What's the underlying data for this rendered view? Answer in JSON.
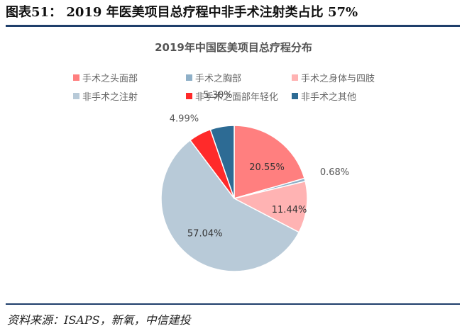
{
  "header": {
    "figure_title": "图表51： 2019 年医美项目总疗程中非手术注射类占比 57%"
  },
  "chart_data": {
    "type": "pie",
    "title": "2019年中国医美项目总疗程分布",
    "legend_position": "top",
    "slices": [
      {
        "name": "手术之头面部",
        "value": 20.55,
        "label": "20.55%",
        "color": "#ff7f7f"
      },
      {
        "name": "手术之胸部",
        "value": 0.68,
        "label": "0.68%",
        "color": "#8fb0c8"
      },
      {
        "name": "手术之身体与四肢",
        "value": 11.44,
        "label": "11.44%",
        "color": "#ffb3b3"
      },
      {
        "name": "非手术之注射",
        "value": 57.04,
        "label": "57.04%",
        "color": "#b8cad8"
      },
      {
        "name": "非手术之面部年轻化",
        "value": 4.99,
        "label": "4.99%",
        "color": "#ff2a2a"
      },
      {
        "name": "非手术之其他",
        "value": 5.3,
        "label": "5.30%",
        "color": "#2d6b94"
      }
    ]
  },
  "footer": {
    "source": "资料来源：ISAPS，新氧，中信建投"
  }
}
